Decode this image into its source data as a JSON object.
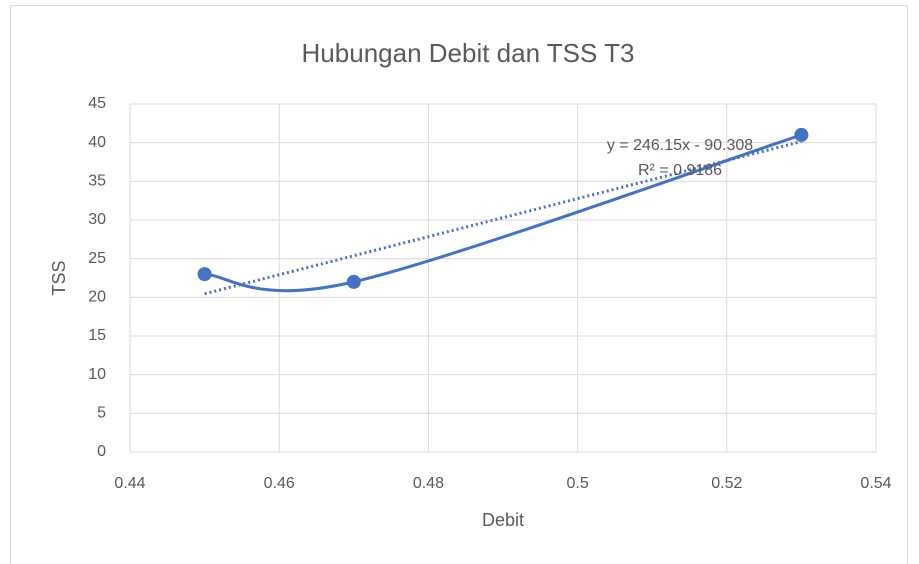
{
  "chart_data": {
    "type": "scatter",
    "title": "Hubungan Debit dan TSS T3",
    "x_label": "Debit",
    "y_label": "TSS",
    "series": [
      {
        "name": "TSS",
        "color": "#4472c4",
        "x": [
          0.45,
          0.47,
          0.53
        ],
        "values": [
          23,
          22,
          41
        ],
        "smooth": true
      }
    ],
    "trendline": {
      "type": "linear",
      "slope": 246.15,
      "intercept": -90.308,
      "color": "#4472c4",
      "equation": "y = 246.15x - 90.308",
      "r_squared": "R² = 0.9186"
    },
    "xlim": [
      0.44,
      0.54
    ],
    "xticks": [
      0.44,
      0.46,
      0.48,
      0.5,
      0.52,
      0.54
    ],
    "ylim": [
      0,
      45
    ],
    "yticks": [
      0,
      5,
      10,
      15,
      20,
      25,
      30,
      35,
      40,
      45
    ],
    "grid": true,
    "legend": false
  }
}
